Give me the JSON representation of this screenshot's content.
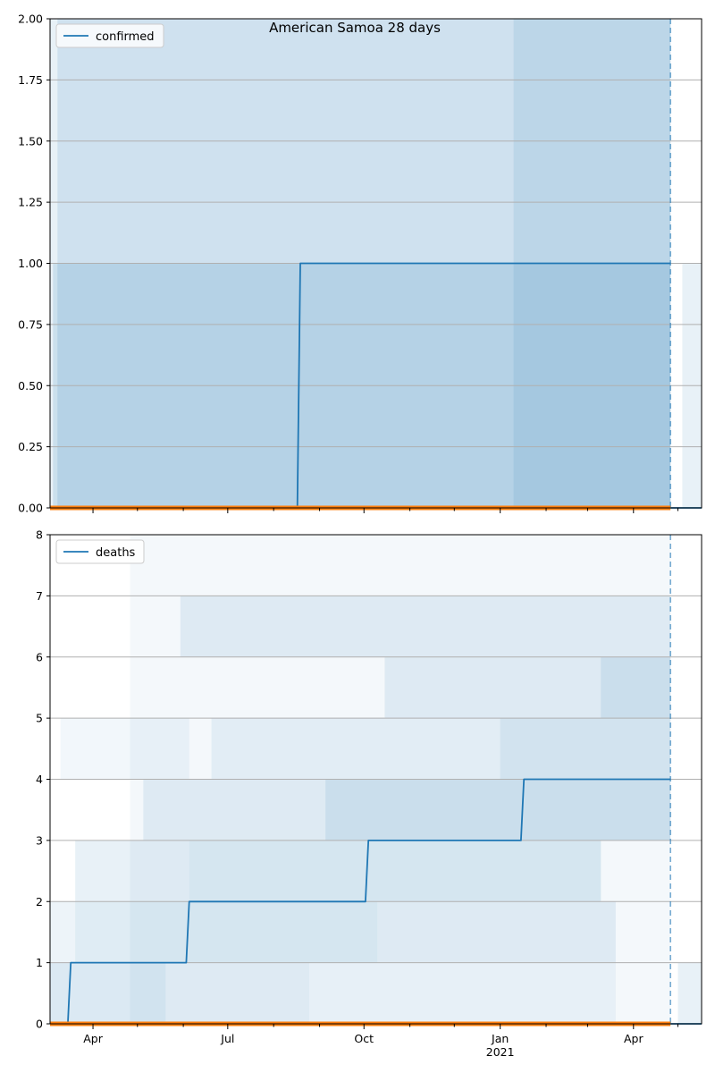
{
  "chart_data": [
    {
      "type": "line",
      "title": "American Samoa 28 days",
      "legend": [
        "confirmed"
      ],
      "legend_placement": "top-left",
      "grid": "horizontal",
      "ylim": [
        0,
        2
      ],
      "yticks": [
        "0.00",
        "0.25",
        "0.50",
        "0.75",
        "1.00",
        "1.25",
        "1.50",
        "1.75",
        "2.00"
      ],
      "xlim": [
        "2020-03-03",
        "2021-05-17"
      ],
      "forecast_start": "2021-04-26",
      "series": [
        {
          "name": "confirmed",
          "color": "#1f77b4",
          "points": [
            [
              "2020-03-03",
              0
            ],
            [
              "2020-08-17",
              0
            ],
            [
              "2020-08-19",
              1
            ],
            [
              "2021-04-26",
              1
            ]
          ]
        },
        {
          "color": "#ff7f0e",
          "points": [
            [
              "2020-03-03",
              0
            ],
            [
              "2021-04-26",
              0
            ]
          ]
        },
        {
          "color": "#1f77b4",
          "points": [
            [
              "2021-04-26",
              0
            ],
            [
              "2021-05-17",
              0
            ]
          ]
        }
      ]
    },
    {
      "type": "line",
      "legend": [
        "deaths"
      ],
      "legend_placement": "top-left",
      "grid": "horizontal",
      "ylim": [
        0,
        8
      ],
      "yticks": [
        "0",
        "1",
        "2",
        "3",
        "4",
        "5",
        "6",
        "7",
        "8"
      ],
      "xlim": [
        "2020-03-03",
        "2021-05-17"
      ],
      "forecast_start": "2021-04-26",
      "series": [
        {
          "name": "deaths",
          "color": "#1f77b4",
          "points": [
            [
              "2020-03-03",
              0
            ],
            [
              "2020-03-15",
              0
            ],
            [
              "2020-03-17",
              1
            ],
            [
              "2020-06-03",
              1
            ],
            [
              "2020-06-05",
              2
            ],
            [
              "2020-10-02",
              2
            ],
            [
              "2020-10-04",
              3
            ],
            [
              "2021-01-15",
              3
            ],
            [
              "2021-01-17",
              4
            ],
            [
              "2021-04-26",
              4
            ]
          ]
        },
        {
          "color": "#ff7f0e",
          "points": [
            [
              "2020-03-03",
              0
            ],
            [
              "2021-04-26",
              0
            ]
          ]
        },
        {
          "color": "#1f77b4",
          "points": [
            [
              "2021-04-26",
              0
            ],
            [
              "2021-05-17",
              0
            ]
          ]
        }
      ]
    }
  ],
  "x_axis": {
    "major_ticks": [
      {
        "date": "2020-04-01",
        "label": "Apr"
      },
      {
        "date": "2020-07-01",
        "label": "Jul"
      },
      {
        "date": "2020-10-01",
        "label": "Oct"
      },
      {
        "date": "2021-01-01",
        "label": "Jan",
        "sublabel": "2021"
      },
      {
        "date": "2021-04-01",
        "label": "Apr"
      }
    ],
    "minor_ticks": [
      "2020-05-01",
      "2020-06-01",
      "2020-08-01",
      "2020-09-01",
      "2020-11-01",
      "2020-12-01",
      "2021-02-01",
      "2021-03-01",
      "2021-05-01"
    ]
  },
  "colors": {
    "band": "#1f77b4",
    "grid": "#b0b0b0",
    "observed": "#1f77b4",
    "forecast_line": "#ff7f0e"
  }
}
